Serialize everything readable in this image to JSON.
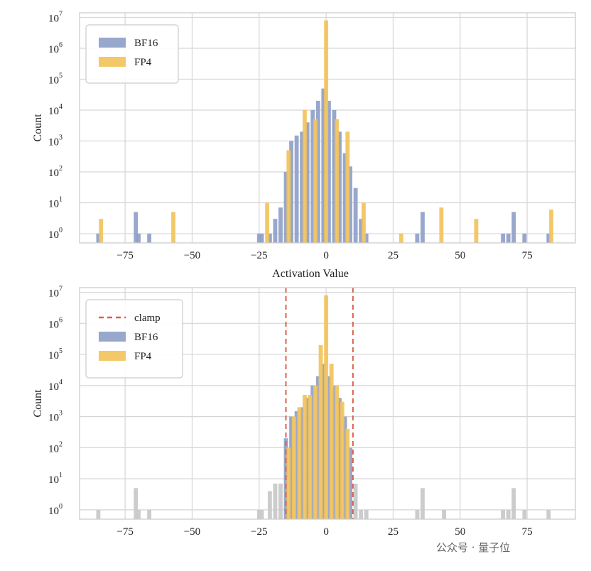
{
  "colors": {
    "bf16": "#8fa0c8",
    "fp4": "#f2c35c",
    "clipped": "#c9c9c9",
    "clamp": "#d9624a",
    "grid": "#d6d6d6",
    "frame": "#cccccc"
  },
  "watermark": "公众号 · 量子位",
  "chart_data": [
    {
      "type": "bar",
      "scale": "log",
      "xlabel": "Activation Value",
      "ylabel": "Count",
      "xlim": [
        -92,
        93
      ],
      "ylim_exponents": [
        -0.3,
        7.15
      ],
      "xticks": [
        -75,
        -50,
        -25,
        0,
        25,
        50,
        75
      ],
      "xtick_labels": [
        "−75",
        "−50",
        "−25",
        "0",
        "25",
        "50",
        "75"
      ],
      "yticks": [
        0,
        1,
        2,
        3,
        4,
        5,
        6,
        7
      ],
      "legend": {
        "location": "upper-left",
        "entries": [
          {
            "label": "BF16",
            "series": "bf16",
            "kind": "patch"
          },
          {
            "label": "FP4",
            "series": "fp4",
            "kind": "patch"
          }
        ]
      },
      "series": [
        {
          "name": "BF16",
          "key": "bf16",
          "x": [
            -85,
            -71,
            -70,
            -66,
            -25,
            -24,
            -21,
            -19,
            -17,
            -15,
            -13,
            -11,
            -9,
            -7,
            -5,
            -3,
            -1,
            1,
            3,
            5,
            7,
            9,
            11,
            13,
            15,
            34,
            36,
            66,
            68,
            70,
            74,
            83
          ],
          "y": [
            1,
            5,
            1,
            1,
            1,
            1,
            1,
            3,
            7,
            100,
            1000,
            1500,
            2000,
            4000,
            10000,
            20000,
            50000,
            20000,
            10000,
            2000,
            400,
            150,
            30,
            3,
            1,
            1,
            5,
            1,
            1,
            5,
            1,
            1
          ]
        },
        {
          "name": "FP4",
          "key": "fp4",
          "x": [
            -84,
            -57,
            -22,
            -14,
            -8,
            -4,
            0,
            4,
            8,
            14,
            28,
            43,
            56,
            84
          ],
          "y": [
            3,
            5,
            10,
            500,
            10000,
            5000,
            8000000,
            5000,
            2000,
            10,
            1,
            7,
            3,
            6
          ]
        }
      ]
    },
    {
      "type": "bar",
      "scale": "log",
      "xlabel": "Activation Value",
      "ylabel": "Count",
      "xlim": [
        -92,
        93
      ],
      "ylim_exponents": [
        -0.3,
        7.15
      ],
      "xticks": [
        -75,
        -50,
        -25,
        0,
        25,
        50,
        75
      ],
      "xtick_labels": [
        "−75",
        "−50",
        "−25",
        "0",
        "25",
        "50",
        "75"
      ],
      "yticks": [
        0,
        1,
        2,
        3,
        4,
        5,
        6,
        7
      ],
      "clamp": [
        -15,
        10
      ],
      "legend": {
        "location": "upper-left",
        "entries": [
          {
            "label": "clamp",
            "series": "clamp",
            "kind": "dashed-line"
          },
          {
            "label": "BF16",
            "series": "bf16",
            "kind": "patch"
          },
          {
            "label": "FP4",
            "series": "fp4",
            "kind": "patch"
          }
        ]
      },
      "series": [
        {
          "name": "clipped",
          "key": "clipped",
          "x": [
            -85,
            -71,
            -70,
            -66,
            -25,
            -24,
            -21,
            -19,
            -17,
            11,
            13,
            15,
            34,
            36,
            44,
            66,
            68,
            70,
            74,
            83
          ],
          "y": [
            1,
            5,
            1,
            1,
            1,
            1,
            4,
            7,
            7,
            7,
            1,
            1,
            1,
            5,
            1,
            1,
            1,
            5,
            1,
            1
          ]
        },
        {
          "name": "BF16",
          "key": "bf16",
          "x": [
            -15,
            -13,
            -11,
            -9,
            -7,
            -5,
            -3,
            -1,
            1,
            3,
            5,
            7,
            9
          ],
          "y": [
            200,
            1000,
            1500,
            2000,
            4000,
            10000,
            20000,
            50000,
            20000,
            10000,
            4000,
            1000,
            100
          ]
        },
        {
          "name": "FP4",
          "key": "fp4",
          "x": [
            -14,
            -12,
            -10,
            -8,
            -6,
            -4,
            -2,
            0,
            2,
            4,
            6,
            8
          ],
          "y": [
            100,
            1000,
            2000,
            5000,
            5000,
            10000,
            200000,
            8000000,
            50000,
            10000,
            3000,
            400
          ]
        }
      ]
    }
  ]
}
